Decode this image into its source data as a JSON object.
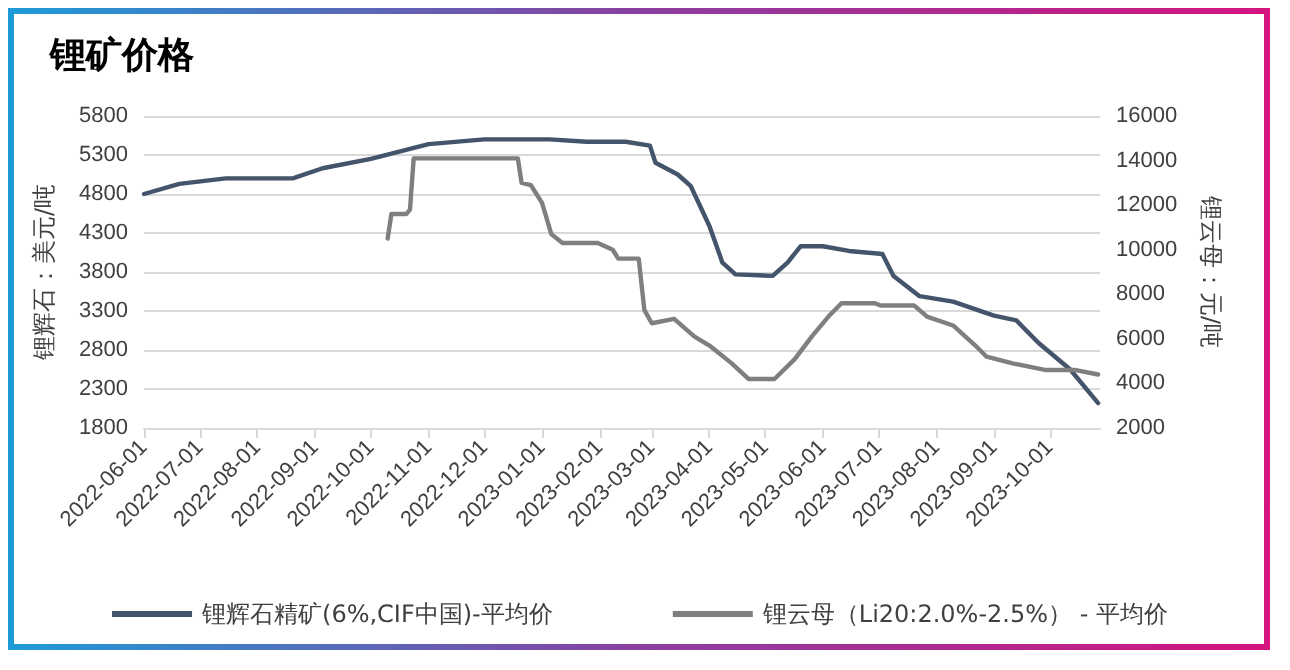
{
  "chart_data": {
    "type": "line",
    "title": "锂矿价格",
    "ylabel": "锂辉石：美元/吨",
    "y2label": "锂云母：元/吨",
    "xlim": [
      "2022-06-01",
      "2023-10-28"
    ],
    "xticks": [
      "2022-06-01",
      "2022-07-01",
      "2022-08-01",
      "2022-09-01",
      "2022-10-01",
      "2022-11-01",
      "2022-12-01",
      "2023-01-01",
      "2023-02-01",
      "2023-03-01",
      "2023-04-01",
      "2023-05-01",
      "2023-06-01",
      "2023-07-01",
      "2023-08-01",
      "2023-09-01",
      "2023-10-01"
    ],
    "ylim": [
      1800,
      5800
    ],
    "yticks": [
      1800,
      2300,
      2800,
      3300,
      3800,
      4300,
      4800,
      5300,
      5800
    ],
    "y2lim": [
      2000,
      16000
    ],
    "y2ticks": [
      2000,
      4000,
      6000,
      8000,
      10000,
      12000,
      14000,
      16000
    ],
    "grid": "y",
    "legend": "bottom",
    "marker": "none",
    "line_style": "solid",
    "series": [
      {
        "name": "锂辉石精矿(6%,CIF中国)-平均价",
        "color": "#44546a",
        "x": [
          "2022-06-01",
          "2022-06-20",
          "2022-07-15",
          "2022-08-20",
          "2022-09-05",
          "2022-10-01",
          "2022-11-01",
          "2022-12-01",
          "2023-01-05",
          "2023-01-25",
          "2023-02-15",
          "2023-02-28",
          "2023-03-03",
          "2023-03-15",
          "2023-03-22",
          "2023-04-01",
          "2023-04-08",
          "2023-04-15",
          "2023-05-05",
          "2023-05-13",
          "2023-05-20",
          "2023-06-01",
          "2023-06-15",
          "2023-07-03",
          "2023-07-09",
          "2023-07-23",
          "2023-08-10",
          "2023-09-01",
          "2023-09-13",
          "2023-09-25",
          "2023-10-12",
          "2023-10-27"
        ],
        "values": [
          4800,
          4930,
          5000,
          5000,
          5130,
          5250,
          5440,
          5500,
          5500,
          5470,
          5470,
          5420,
          5200,
          5050,
          4900,
          4390,
          3920,
          3770,
          3750,
          3920,
          4130,
          4130,
          4070,
          4030,
          3750,
          3490,
          3420,
          3240,
          3180,
          2890,
          2550,
          2120
        ]
      },
      {
        "name": "锂云母（Li20:2.0%-2.5%） - 平均价",
        "color": "#7f7f7f",
        "axis": "y2",
        "x": [
          "2022-10-10",
          "2022-10-12",
          "2022-10-20",
          "2022-10-22",
          "2022-10-24",
          "2022-12-19",
          "2022-12-21",
          "2022-12-26",
          "2023-01-01",
          "2023-01-06",
          "2023-01-12",
          "2023-01-31",
          "2023-02-08",
          "2023-02-11",
          "2023-02-22",
          "2023-02-25",
          "2023-03-01",
          "2023-03-13",
          "2023-03-24",
          "2023-04-01",
          "2023-04-13",
          "2023-04-22",
          "2023-05-06",
          "2023-05-17",
          "2023-05-26",
          "2023-06-04",
          "2023-06-11",
          "2023-06-29",
          "2023-07-02",
          "2023-07-20",
          "2023-07-27",
          "2023-08-10",
          "2023-08-22",
          "2023-08-28",
          "2023-09-11",
          "2023-09-29",
          "2023-10-15",
          "2023-10-27"
        ],
        "values": [
          10500,
          11600,
          11600,
          11800,
          14100,
          14100,
          13000,
          12900,
          12100,
          10700,
          10300,
          10300,
          10000,
          9600,
          9600,
          7300,
          6700,
          6900,
          6100,
          5700,
          4900,
          4200,
          4200,
          5100,
          6100,
          7000,
          7600,
          7600,
          7500,
          7500,
          7000,
          6600,
          5700,
          5200,
          4900,
          4600,
          4600,
          4400
        ]
      }
    ]
  }
}
